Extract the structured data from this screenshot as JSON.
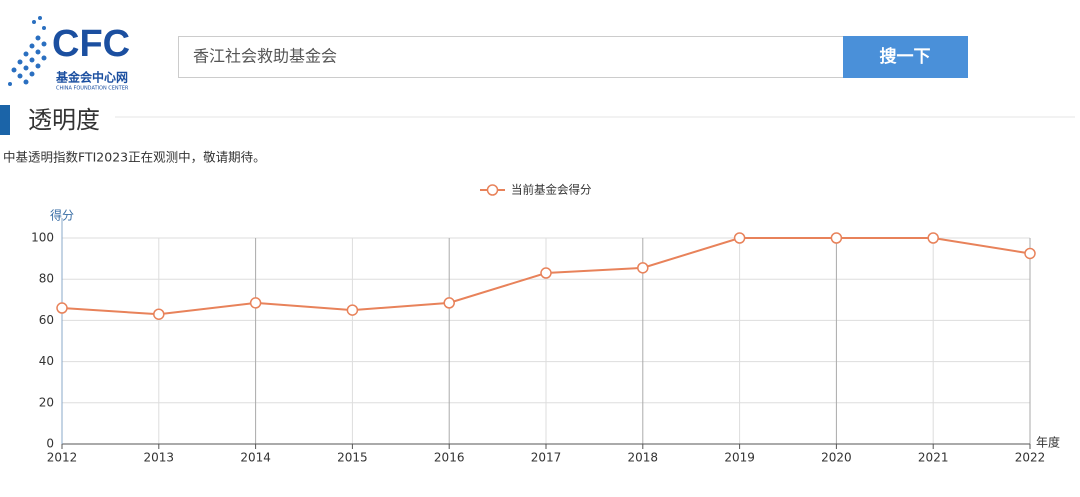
{
  "header": {
    "logo_text": "CFC",
    "logo_name": "基金会中心网",
    "logo_english": "CHINA FOUNDATION CENTER",
    "search_value": "香江社会救助基金会",
    "search_button": "搜一下"
  },
  "section": {
    "title": "透明度",
    "note": "中基透明指数FTI2023正在观测中，敬请期待。"
  },
  "chart_data": {
    "type": "line",
    "ylabel": "得分",
    "xlabel": "年度",
    "x": [
      2012,
      2013,
      2014,
      2015,
      2016,
      2017,
      2018,
      2019,
      2020,
      2021,
      2022
    ],
    "series": [
      {
        "name": "当前基金会得分",
        "color": "#e8825a",
        "values": [
          66,
          63,
          68.5,
          65,
          68.5,
          83,
          85.5,
          100,
          100,
          100,
          92.5
        ]
      }
    ],
    "xlim": [
      2012,
      2022
    ],
    "xticks": [
      2012,
      2013,
      2014,
      2015,
      2016,
      2017,
      2018,
      2019,
      2020,
      2021,
      2022
    ],
    "ylim": [
      0,
      100
    ],
    "yticks": [
      0,
      20,
      40,
      60,
      80,
      100
    ],
    "grid": true,
    "legend": "top"
  }
}
